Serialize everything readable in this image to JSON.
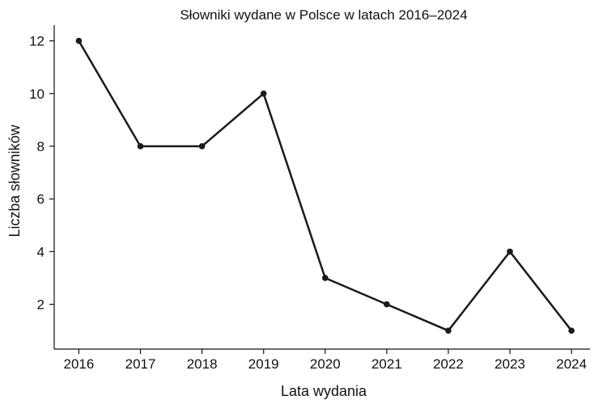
{
  "chart_data": {
    "type": "line",
    "title": "Słowniki wydane w Polsce w latach 2016–2024",
    "xlabel": "Lata wydania",
    "ylabel": "Liczba słowników",
    "x": [
      2016,
      2017,
      2018,
      2019,
      2020,
      2021,
      2022,
      2023,
      2024
    ],
    "series": [
      {
        "values": [
          12,
          8,
          8,
          10,
          3,
          2,
          1,
          4,
          1
        ]
      }
    ],
    "x_ticks": [
      "2016",
      "2017",
      "2018",
      "2019",
      "2020",
      "2021",
      "2022",
      "2023",
      "2024"
    ],
    "y_ticks": [
      2,
      4,
      6,
      8,
      10,
      12
    ],
    "xlim": [
      2015.6,
      2024.3
    ],
    "ylim": [
      0.3,
      12.6
    ],
    "grid": false,
    "legend": "none",
    "colors": {
      "line": "#1a1a1a",
      "axis": "#111111"
    }
  }
}
